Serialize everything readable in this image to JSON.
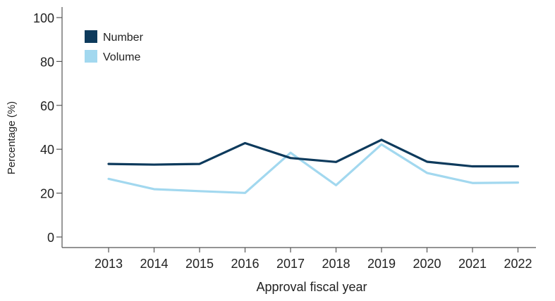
{
  "chart_data": {
    "type": "line",
    "title": "",
    "xlabel": "Approval fiscal year",
    "ylabel": "Percentage (%)",
    "categories": [
      "2013",
      "2014",
      "2015",
      "2016",
      "2017",
      "2018",
      "2019",
      "2020",
      "2021",
      "2022"
    ],
    "y_ticks": [
      "0",
      "20",
      "40",
      "60",
      "80",
      "100"
    ],
    "ylim": [
      0,
      100
    ],
    "grid": false,
    "legend_position": "top-left",
    "series": [
      {
        "name": "Number",
        "color": "#0d3a5c",
        "values": [
          33.3,
          33.0,
          33.3,
          42.8,
          36.0,
          34.2,
          44.3,
          34.3,
          32.2,
          32.2
        ]
      },
      {
        "name": "Volume",
        "color": "#a2d8ef",
        "values": [
          26.5,
          21.8,
          20.9,
          20.1,
          38.4,
          23.6,
          42.2,
          29.2,
          24.6,
          24.8
        ]
      }
    ]
  }
}
